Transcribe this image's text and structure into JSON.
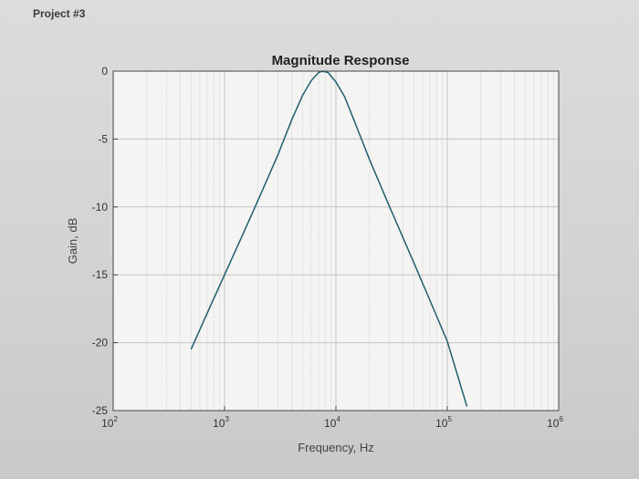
{
  "header": {
    "label": "Project #3"
  },
  "colors": {
    "line": "#1f5f6e",
    "grid": "#c4c4c4",
    "axes": "#444444",
    "plot_bg": "#f4f4f2"
  },
  "chart_data": {
    "type": "line",
    "title": "Magnitude Response",
    "xlabel": "Frequency, Hz",
    "ylabel": "Gain, dB",
    "x_scale": "log",
    "xlim": [
      100,
      1000000
    ],
    "ylim": [
      -25,
      0
    ],
    "grid": true,
    "x_ticks": [
      {
        "base": "10",
        "exp": "2",
        "value": 100
      },
      {
        "base": "10",
        "exp": "3",
        "value": 1000
      },
      {
        "base": "10",
        "exp": "4",
        "value": 10000
      },
      {
        "base": "10",
        "exp": "5",
        "value": 100000
      },
      {
        "base": "10",
        "exp": "6",
        "value": 1000000
      }
    ],
    "y_ticks": [
      {
        "label": "0",
        "value": 0
      },
      {
        "label": "-5",
        "value": -5
      },
      {
        "label": "-10",
        "value": -10
      },
      {
        "label": "-15",
        "value": -15
      },
      {
        "label": "-20",
        "value": -20
      },
      {
        "label": "-25",
        "value": -25
      }
    ],
    "series": [
      {
        "x": [
          500,
          700,
          1000,
          1500,
          2000,
          3000,
          4000,
          5000,
          6000,
          7000,
          7500,
          8500,
          10000,
          12000,
          15000,
          20000,
          30000,
          50000,
          70000,
          100000,
          150000
        ],
        "y": [
          -20.5,
          -17.8,
          -15.0,
          -11.8,
          -9.5,
          -6.2,
          -3.6,
          -1.8,
          -0.7,
          -0.1,
          0.0,
          -0.1,
          -0.8,
          -1.9,
          -3.9,
          -6.5,
          -9.9,
          -14.1,
          -16.9,
          -19.9,
          -24.7
        ]
      }
    ]
  }
}
